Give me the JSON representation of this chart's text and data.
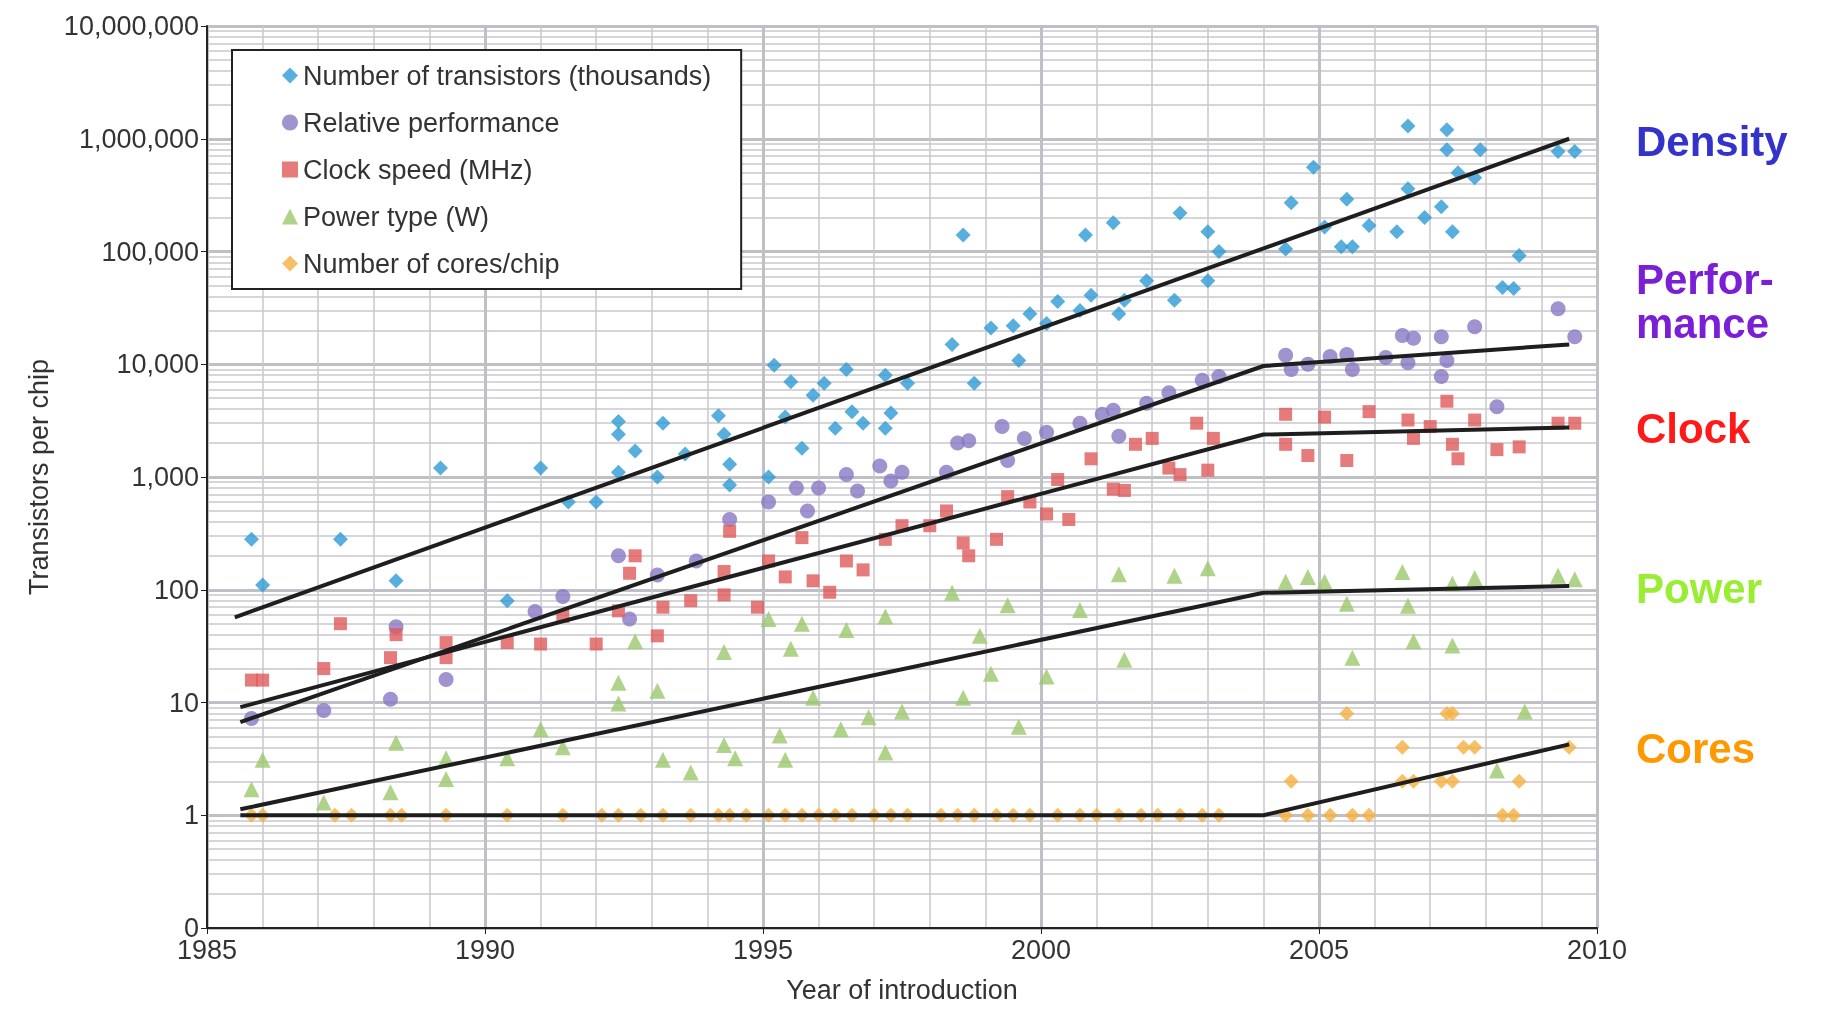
{
  "chart_data": {
    "type": "scatter",
    "xlabel": "Year of introduction",
    "ylabel": "Transistors per chip",
    "xlim": [
      1985,
      2010
    ],
    "xticks": [
      1985,
      1990,
      1995,
      2000,
      2005,
      2010
    ],
    "ylim": [
      0.1,
      10000000
    ],
    "yticks": [
      {
        "value": 0.1,
        "label": "0"
      },
      1,
      10,
      100,
      {
        "value": 1000,
        "label": "1,000"
      },
      {
        "value": 10000,
        "label": "10,000"
      },
      {
        "value": 100000,
        "label": "100,000"
      },
      {
        "value": 1000000,
        "label": "1,000,000"
      },
      {
        "value": 10000000,
        "label": "10,000,000"
      }
    ],
    "log": "y",
    "grid": true,
    "legend": "top left",
    "annotations": [
      "Density",
      "Perfor-\nmance",
      "Clock",
      "Power",
      "Cores"
    ],
    "series": [
      {
        "name": "Number of transistors (thousands)",
        "type": "scatter",
        "marker": "diamond",
        "color": "#2e9bd6",
        "x": [
          1985.8,
          1986,
          1987.4,
          1988.4,
          1989.2,
          1990.4,
          1991,
          1991.5,
          1992,
          1992.4,
          1992.4,
          1992.4,
          1992.7,
          1993.2,
          1993.1,
          1993.6,
          1994.2,
          1994.3,
          1994.4,
          1994.4,
          1995.1,
          1995.2,
          1995.5,
          1995.4,
          1995.7,
          1995.9,
          1996.1,
          1996.3,
          1996.5,
          1996.6,
          1996.8,
          1997.2,
          1997.3,
          1997.2,
          1997.6,
          1998.4,
          1998.6,
          1998.8,
          1999.1,
          1999.5,
          1999.6,
          1999.8,
          2000.1,
          2000.3,
          2000.8,
          2000.9,
          2000.7,
          2001.3,
          2001.4,
          2001.5,
          2001.9,
          2002.5,
          2002.4,
          2003,
          2003,
          2003.2,
          2004.4,
          2004.5,
          2004.9,
          2005.1,
          2005.5,
          2005.4,
          2005.6,
          2005.9,
          2006.4,
          2006.6,
          2006.6,
          2006.9,
          2007.2,
          2007.3,
          2007.3,
          2007.4,
          2007.5,
          2007.8,
          2007.9,
          2008.3,
          2008.5,
          2008.6,
          2009.3,
          2009.6
        ],
        "values": [
          280,
          110,
          280,
          120,
          1200,
          80,
          1200,
          600,
          600,
          3100,
          2400,
          1100,
          1700,
          3000,
          1000,
          1600,
          3500,
          2400,
          1300,
          850,
          1000,
          9800,
          7000,
          3400,
          1800,
          5300,
          6800,
          2700,
          9000,
          3800,
          3000,
          8000,
          3700,
          2700,
          6800,
          15000,
          140000,
          6800,
          21000,
          22000,
          10800,
          28000,
          23000,
          36000,
          140000,
          41000,
          30000,
          180000,
          28000,
          37000,
          55000,
          220000,
          37000,
          150000,
          55000,
          100000,
          105000,
          270000,
          560000,
          165000,
          290000,
          110000,
          110000,
          170000,
          150000,
          360000,
          1300000,
          200000,
          250000,
          1200000,
          800000,
          150000,
          500000,
          450000,
          800000,
          48000,
          47000,
          92000,
          770000,
          770000
        ]
      },
      {
        "name": "Relative performance",
        "type": "scatter",
        "marker": "circle",
        "color": "#8878c3",
        "x": [
          1985.8,
          1987.1,
          1988.3,
          1988.4,
          1989.3,
          1990.9,
          1991.4,
          1992.4,
          1992.6,
          1993.1,
          1993.8,
          1994.4,
          1995.1,
          1995.6,
          1995.8,
          1996,
          1996.5,
          1996.7,
          1997.1,
          1997.3,
          1997.5,
          1998.3,
          1998.5,
          1998.7,
          1999.3,
          1999.4,
          1999.7,
          2000.1,
          2000.7,
          2001.1,
          2001.3,
          2001.4,
          2001.9,
          2002.3,
          2002.9,
          2003.2,
          2004.4,
          2004.5,
          2004.8,
          2005.2,
          2005.5,
          2005.6,
          2006.2,
          2006.5,
          2006.7,
          2006.6,
          2007.2,
          2007.2,
          2007.3,
          2007.8,
          2008.2,
          2009.3,
          2009.6
        ],
        "values": [
          7.2,
          8.5,
          10.7,
          47,
          16,
          64,
          87,
          200,
          55,
          135,
          180,
          420,
          600,
          800,
          500,
          800,
          1050,
          750,
          1250,
          920,
          1100,
          1100,
          2000,
          2100,
          2800,
          1400,
          2200,
          2500,
          3000,
          3600,
          3900,
          2300,
          4500,
          5600,
          7200,
          7800,
          12000,
          9000,
          10000,
          11700,
          12200,
          9000,
          11500,
          18000,
          17000,
          10300,
          17500,
          7800,
          10800,
          21500,
          4200,
          31000,
          17500
        ]
      },
      {
        "name": "Clock speed (MHz)",
        "type": "scatter",
        "marker": "square",
        "color": "#e05a5a",
        "x": [
          1985.8,
          1986,
          1987.1,
          1987.4,
          1988.3,
          1988.4,
          1989.3,
          1989.3,
          1990.4,
          1991,
          1991.4,
          1992,
          1992.4,
          1992.6,
          1992.7,
          1993.1,
          1993.2,
          1993.7,
          1994.3,
          1994.3,
          1994.4,
          1994.9,
          1995.1,
          1995.4,
          1995.7,
          1995.9,
          1996.2,
          1996.5,
          1996.8,
          1997.2,
          1997.5,
          1998,
          1998.3,
          1998.6,
          1998.7,
          1999.2,
          1999.4,
          1999.8,
          2000.1,
          2000.3,
          2000.5,
          2000.9,
          2001.3,
          2001.5,
          2001.7,
          2002,
          2002.3,
          2002.5,
          2002.8,
          2003,
          2003.1,
          2004.4,
          2004.4,
          2004.8,
          2005.1,
          2005.5,
          2005.9,
          2006.6,
          2006.7,
          2007,
          2007.3,
          2007.4,
          2007.5,
          2007.8,
          2008.2,
          2008.6,
          2009.3,
          2009.6
        ],
        "values": [
          15.8,
          15.8,
          20,
          50,
          25,
          40,
          34,
          25,
          34,
          33,
          58,
          33,
          65,
          140,
          200,
          39,
          70,
          80,
          90,
          145,
          330,
          70,
          180,
          130,
          290,
          120,
          95,
          180,
          150,
          280,
          370,
          370,
          500,
          260,
          200,
          280,
          670,
          600,
          470,
          950,
          420,
          1450,
          780,
          760,
          1950,
          2200,
          1200,
          1050,
          3000,
          1150,
          2200,
          3600,
          1950,
          1550,
          3400,
          1400,
          3800,
          3200,
          2200,
          2800,
          4700,
          1950,
          1450,
          3200,
          1750,
          1850,
          3000,
          3000
        ]
      },
      {
        "name": "Power type (W)",
        "type": "scatter",
        "marker": "triangle",
        "color": "#9bc86a",
        "x": [
          1985.8,
          1986,
          1987.1,
          1988.3,
          1988.4,
          1989.3,
          1989.3,
          1990.4,
          1991,
          1991.4,
          1992.4,
          1992.4,
          1992.7,
          1993.1,
          1993.2,
          1993.7,
          1994.3,
          1994.3,
          1994.5,
          1995.1,
          1995.3,
          1995.4,
          1995.5,
          1995.7,
          1995.9,
          1996.4,
          1996.5,
          1996.9,
          1997.2,
          1997.2,
          1997.5,
          1998.4,
          1998.6,
          1998.9,
          1999.1,
          1999.4,
          1999.6,
          2000.1,
          2000.7,
          2001.4,
          2001.5,
          2002.4,
          2003,
          2004.4,
          2004.8,
          2005.1,
          2005.5,
          2005.6,
          2006.5,
          2006.6,
          2006.7,
          2007.4,
          2007.4,
          2007.8,
          2008.2,
          2008.7,
          2009.3,
          2009.6
        ],
        "values": [
          1.7,
          3.1,
          1.3,
          1.6,
          4.4,
          3.2,
          2.1,
          3.2,
          5.8,
          4,
          15,
          9.8,
          35,
          12.7,
          3.1,
          2.4,
          28,
          4.2,
          3.2,
          55,
          5.1,
          3.1,
          30,
          50,
          11,
          5.8,
          44,
          7.4,
          58,
          3.6,
          8.3,
          94,
          11,
          39,
          18,
          73,
          6.1,
          17,
          66,
          137,
          24,
          133,
          155,
          118,
          130,
          118,
          75,
          25,
          144,
          72,
          35,
          113,
          32,
          127,
          2.5,
          8.3,
          133,
          124
        ]
      },
      {
        "name": "Number of cores/chip",
        "type": "scatter",
        "marker": "diamond",
        "color": "#f5b041",
        "x": [
          1985.8,
          1986,
          1987.3,
          1987.6,
          1988.3,
          1988.5,
          1989.3,
          1990.4,
          1991.4,
          1992.1,
          1992.4,
          1992.8,
          1993.2,
          1993.7,
          1994.2,
          1994.4,
          1994.7,
          1995.1,
          1995.4,
          1995.7,
          1996,
          1996.3,
          1996.6,
          1997,
          1997.3,
          1997.6,
          1998.2,
          1998.5,
          1998.8,
          1999.2,
          1999.5,
          1999.8,
          2000.3,
          2000.7,
          2001,
          2001.4,
          2001.8,
          2002.1,
          2002.5,
          2002.9,
          2003.2,
          2004.4,
          2004.5,
          2004.8,
          2005.2,
          2005.5,
          2005.6,
          2005.9,
          2006.5,
          2006.5,
          2006.7,
          2007.2,
          2007.3,
          2007.4,
          2007.6,
          2007.8,
          2007.4,
          2008.3,
          2008.5,
          2008.6,
          2009.5
        ],
        "values": [
          1,
          1,
          1,
          1,
          1,
          1,
          1,
          1,
          1,
          1,
          1,
          1,
          1,
          1,
          1,
          1,
          1,
          1,
          1,
          1,
          1,
          1,
          1,
          1,
          1,
          1,
          1,
          1,
          1,
          1,
          1,
          1,
          1,
          1,
          1,
          1,
          1,
          1,
          1,
          1,
          1,
          1,
          2,
          1,
          1,
          8,
          1,
          1,
          4,
          2,
          2,
          2,
          8,
          8,
          4,
          4,
          2,
          1,
          1,
          2,
          4
        ]
      },
      {
        "type": "line",
        "marker": "none",
        "line_style": "solid",
        "color": "#1e1e1e",
        "x": [
          1985.5,
          2009.5
        ],
        "values": [
          57,
          1000000
        ]
      },
      {
        "type": "line",
        "marker": "none",
        "line_style": "solid",
        "color": "#1e1e1e",
        "x": [
          1985.6,
          2004,
          2009.5
        ],
        "values": [
          6.7,
          9650,
          15000
        ]
      },
      {
        "type": "line",
        "marker": "none",
        "line_style": "solid",
        "color": "#1e1e1e",
        "x": [
          1985.6,
          2004,
          2009.5
        ],
        "values": [
          9.1,
          2380,
          2750
        ]
      },
      {
        "type": "line",
        "marker": "none",
        "line_style": "solid",
        "color": "#1e1e1e",
        "x": [
          1985.6,
          2004,
          2009.5
        ],
        "values": [
          1.13,
          94,
          108
        ]
      },
      {
        "type": "line",
        "marker": "none",
        "line_style": "solid",
        "color": "#1e1e1e",
        "x": [
          1985.6,
          2004,
          2009.5
        ],
        "values": [
          1,
          1,
          4.25
        ]
      }
    ]
  }
}
